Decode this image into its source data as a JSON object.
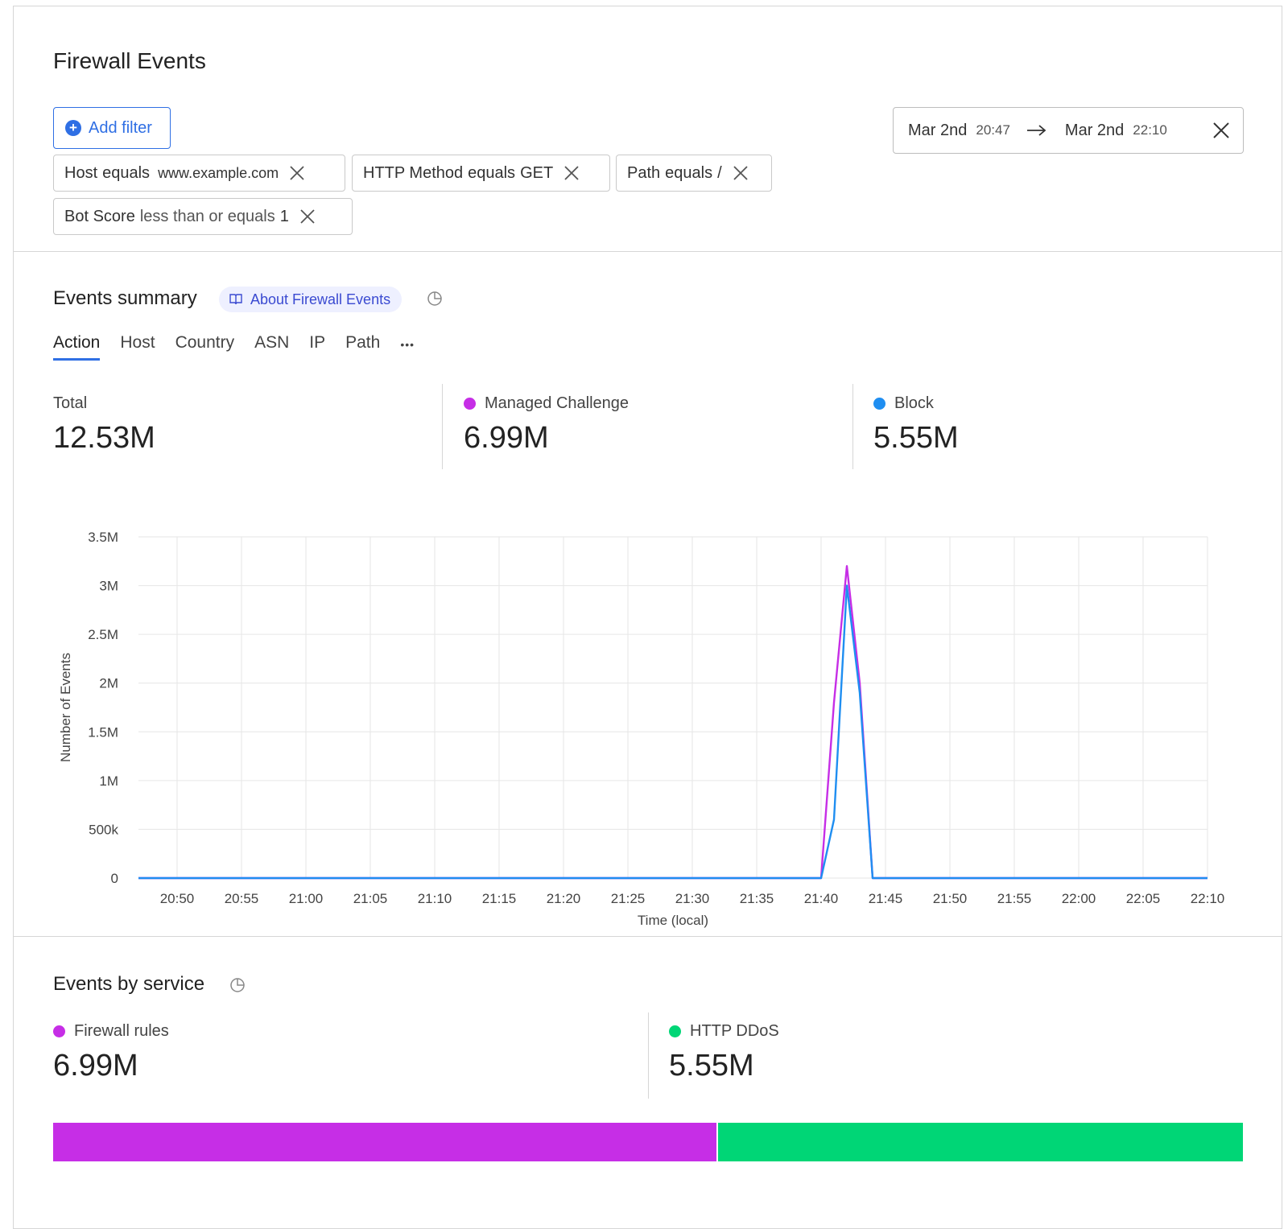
{
  "header": {
    "title": "Firewall Events",
    "add_filter_label": "Add filter"
  },
  "filters": [
    {
      "field": "Host",
      "op": "equals",
      "value": "www.example.com"
    },
    {
      "field": "HTTP Method",
      "op": "equals",
      "value": "GET"
    },
    {
      "field": "Path",
      "op": "equals",
      "value": "/"
    },
    {
      "field": "Bot Score",
      "op": "less than or equals",
      "value": "1"
    }
  ],
  "date_range": {
    "start_date": "Mar 2nd",
    "start_time": "20:47",
    "end_date": "Mar 2nd",
    "end_time": "22:10"
  },
  "events_summary": {
    "title": "Events summary",
    "about_label": "About Firewall Events",
    "tabs": [
      "Action",
      "Host",
      "Country",
      "ASN",
      "IP",
      "Path"
    ],
    "active_tab": "Action",
    "more_label": "•••",
    "stats": [
      {
        "label": "Total",
        "value": "12.53M",
        "color": null
      },
      {
        "label": "Managed Challenge",
        "value": "6.99M",
        "color": "#c62ee6"
      },
      {
        "label": "Block",
        "value": "5.55M",
        "color": "#1f8ef1"
      }
    ]
  },
  "chart_data": {
    "type": "line",
    "xlabel": "Time (local)",
    "ylabel": "Number of Events",
    "ylim": [
      0,
      3500000
    ],
    "y_ticks": [
      0,
      500000,
      1000000,
      1500000,
      2000000,
      2500000,
      3000000,
      3500000
    ],
    "y_tick_labels": [
      "0",
      "500k",
      "1M",
      "1.5M",
      "2M",
      "2.5M",
      "3M",
      "3.5M"
    ],
    "x_tick_labels": [
      "20:50",
      "20:55",
      "21:00",
      "21:05",
      "21:10",
      "21:15",
      "21:20",
      "21:25",
      "21:30",
      "21:35",
      "21:40",
      "21:45",
      "21:50",
      "21:55",
      "22:00",
      "22:05",
      "22:10"
    ],
    "x_start": "20:47",
    "x_end": "22:10",
    "grid": true,
    "series": [
      {
        "name": "Managed Challenge",
        "color": "#c62ee6",
        "points": [
          [
            "20:47",
            0
          ],
          [
            "21:40",
            0
          ],
          [
            "21:41",
            1800000
          ],
          [
            "21:42",
            3200000
          ],
          [
            "21:43",
            2000000
          ],
          [
            "21:44",
            0
          ],
          [
            "22:10",
            0
          ]
        ]
      },
      {
        "name": "Block",
        "color": "#1f8ef1",
        "points": [
          [
            "20:47",
            0
          ],
          [
            "21:40",
            0
          ],
          [
            "21:41",
            600000
          ],
          [
            "21:42",
            3000000
          ],
          [
            "21:43",
            1900000
          ],
          [
            "21:44",
            0
          ],
          [
            "22:10",
            0
          ]
        ]
      }
    ]
  },
  "events_by_service": {
    "title": "Events by service",
    "stats": [
      {
        "label": "Firewall rules",
        "value": "6.99M",
        "color": "#c62ee6",
        "fraction": 0.5578
      },
      {
        "label": "HTTP DDoS",
        "value": "5.55M",
        "color": "#00d676",
        "fraction": 0.4422
      }
    ]
  }
}
